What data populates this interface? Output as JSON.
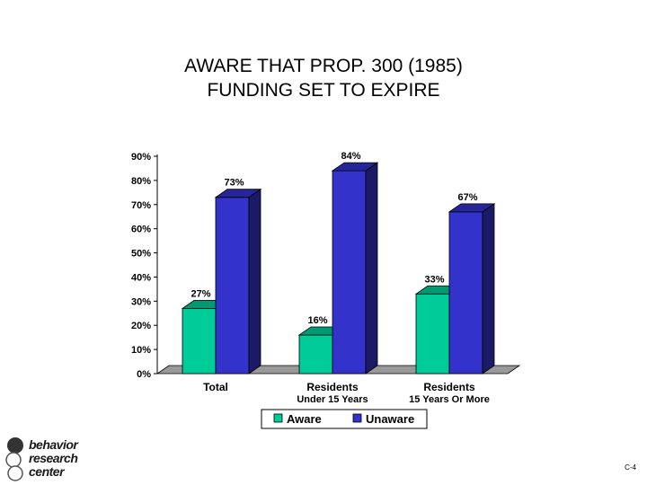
{
  "title_lines": [
    "AWARE THAT PROP. 300 (1985)",
    "FUNDING SET TO EXPIRE"
  ],
  "chart_data": {
    "type": "bar",
    "title": "AWARE THAT PROP. 300 (1985) FUNDING SET TO EXPIRE",
    "categories": [
      [
        "Total"
      ],
      [
        "Residents",
        "Under 15 Years"
      ],
      [
        "Residents",
        "15 Years Or More"
      ]
    ],
    "series": [
      {
        "name": "Aware",
        "values": [
          27,
          16,
          33
        ],
        "color": "#00cc99"
      },
      {
        "name": "Unaware",
        "values": [
          73,
          84,
          67
        ],
        "color": "#3333cc"
      }
    ],
    "data_labels": [
      [
        "27%",
        "16%",
        "33%"
      ],
      [
        "73%",
        "84%",
        "67%"
      ]
    ],
    "y_ticks": [
      "0%",
      "10%",
      "20%",
      "30%",
      "40%",
      "50%",
      "60%",
      "70%",
      "80%",
      "90%"
    ],
    "ylim": [
      0,
      90
    ],
    "legend_position": "bottom",
    "grid": false
  },
  "logo": {
    "lines": [
      "behavior",
      "research",
      "center"
    ]
  },
  "page_number": "C-4"
}
